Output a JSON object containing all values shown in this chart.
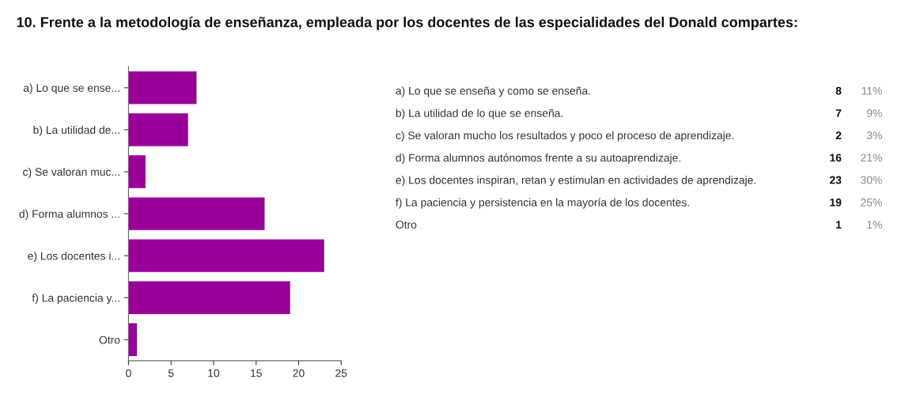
{
  "chart_data": {
    "type": "bar",
    "orientation": "horizontal",
    "title": "10. Frente a la metodología de enseñanza, empleada por los docentes de las especialidades del Donald compartes:",
    "categories": [
      "a) Lo que se ense...",
      "b) La utilidad de...",
      "c) Se valoran muc...",
      "d) Forma alumnos ...",
      "e) Los docentes i...",
      "f) La paciencia y...",
      "Otro"
    ],
    "values": [
      8,
      7,
      2,
      16,
      23,
      19,
      1
    ],
    "color": "#990099",
    "xlim": [
      0,
      25
    ],
    "xticks": [
      0,
      5,
      10,
      15,
      20,
      25
    ],
    "grid": false,
    "annotations": [
      "a) Lo que se enseña y como se enseña.",
      "8",
      "11%",
      "b) La utilidad de lo que se enseña.",
      "7",
      "9%",
      "c) Se valoran mucho los resultados y poco el proceso de aprendizaje.",
      "2",
      "3%",
      "d) Forma alumnos autónomos frente a su autoaprendizaje.",
      "16",
      "21%",
      "e) Los docentes inspiran, retan y estimulan en actividades de aprendizaje.",
      "23",
      "30%",
      "f) La paciencia y persistencia en la mayoría de los docentes.",
      "19",
      "25%",
      "Otro",
      "1",
      "1%"
    ]
  }
}
